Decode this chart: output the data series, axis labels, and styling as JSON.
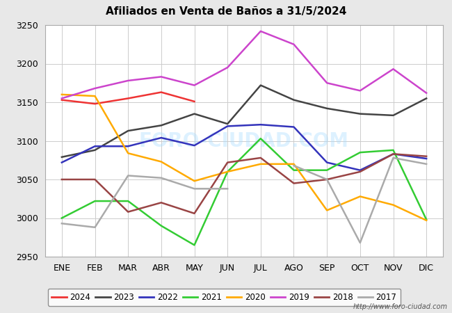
{
  "title": "Afiliados en Venta de Baños a 31/5/2024",
  "ylim": [
    2950,
    3250
  ],
  "yticks": [
    2950,
    3000,
    3050,
    3100,
    3150,
    3200,
    3250
  ],
  "months": [
    "ENE",
    "FEB",
    "MAR",
    "ABR",
    "MAY",
    "JUN",
    "JUL",
    "AGO",
    "SEP",
    "OCT",
    "NOV",
    "DIC"
  ],
  "watermark": "FORO-CIUDAD.COM",
  "url": "http://www.foro-ciudad.com",
  "series": {
    "2024": {
      "color": "#ee3333",
      "values": [
        3153,
        3148,
        3155,
        3163,
        3151,
        null,
        null,
        null,
        null,
        null,
        null,
        null
      ]
    },
    "2023": {
      "color": "#444444",
      "values": [
        3079,
        3088,
        3113,
        3120,
        3135,
        3122,
        3172,
        3153,
        3142,
        3135,
        3133,
        3155
      ]
    },
    "2022": {
      "color": "#3333bb",
      "values": [
        3072,
        3093,
        3093,
        3104,
        3094,
        3119,
        3121,
        3118,
        3072,
        3062,
        3083,
        3077
      ]
    },
    "2021": {
      "color": "#33cc33",
      "values": [
        3000,
        3022,
        3022,
        2990,
        2965,
        3060,
        3103,
        3062,
        3062,
        3085,
        3088,
        2998
      ]
    },
    "2020": {
      "color": "#ffaa00",
      "values": [
        3160,
        3158,
        3084,
        3073,
        3048,
        3060,
        3070,
        3070,
        3010,
        3028,
        3017,
        2997
      ]
    },
    "2019": {
      "color": "#cc44cc",
      "values": [
        3155,
        3168,
        3178,
        3183,
        3172,
        3195,
        3242,
        3225,
        3175,
        3165,
        3193,
        3162
      ]
    },
    "2018": {
      "color": "#994444",
      "values": [
        3050,
        3050,
        3008,
        3020,
        3006,
        3072,
        3078,
        3045,
        3050,
        3060,
        3083,
        3080
      ]
    },
    "2017": {
      "color": "#aaaaaa",
      "values": [
        2993,
        2988,
        3055,
        3052,
        3038,
        3038,
        null,
        3068,
        3050,
        2968,
        3078,
        3070
      ]
    }
  },
  "legend_order": [
    "2024",
    "2023",
    "2022",
    "2021",
    "2020",
    "2019",
    "2018",
    "2017"
  ],
  "title_bar_color": "#5588bb",
  "bg_color": "#e8e8e8",
  "plot_bg": "#ffffff",
  "grid_color": "#cccccc"
}
